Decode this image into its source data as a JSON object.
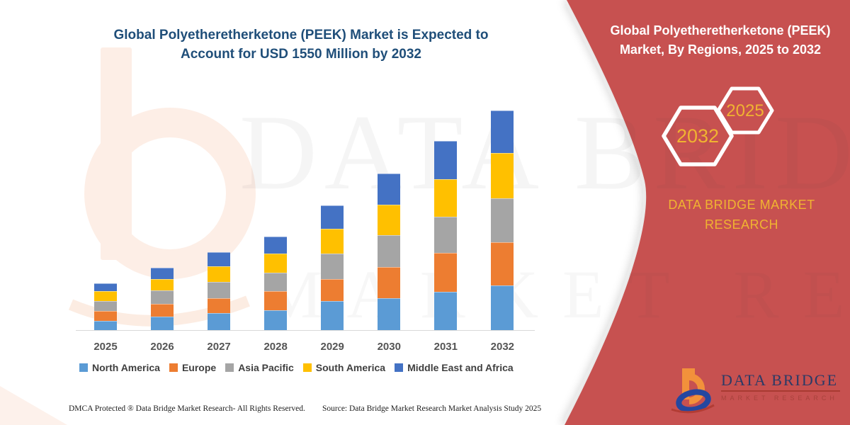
{
  "chart": {
    "title_line1": "Global Polyetheretherketone (PEEK) Market is Expected to",
    "title_line2": "Account for USD 1550 Million by 2032",
    "title_color": "#1f4e79"
  },
  "chart_data": {
    "type": "bar",
    "stacked": true,
    "title": "Global Polyetheretherketone (PEEK) Market is Expected to Account for USD 1550 Million by 2032",
    "unit": "USD Million",
    "xlabel": "",
    "ylabel": "",
    "ylim": [
      0,
      1620
    ],
    "grid": false,
    "legend_position": "bottom",
    "annotation": "USD 1550 Million by 2032",
    "categories": [
      "2025",
      "2026",
      "2027",
      "2028",
      "2029",
      "2030",
      "2031",
      "2032"
    ],
    "series": [
      {
        "name": "North America",
        "color": "#5b9bd5",
        "values": [
          63,
          96,
          121,
          141,
          207,
          224,
          270,
          315
        ]
      },
      {
        "name": "Europe",
        "color": "#ed7d31",
        "values": [
          70,
          91,
          103,
          133,
          154,
          220,
          273,
          307
        ]
      },
      {
        "name": "Asia Pacific",
        "color": "#a5a5a5",
        "values": [
          71,
          94,
          116,
          133,
          179,
          224,
          257,
          308
        ]
      },
      {
        "name": "South America",
        "color": "#ffc000",
        "values": [
          71,
          80,
          108,
          133,
          177,
          216,
          265,
          318
        ]
      },
      {
        "name": "Middle East and Africa",
        "color": "#4472c4",
        "values": [
          53,
          80,
          104,
          121,
          161,
          219,
          268,
          302
        ]
      }
    ],
    "totals": [
      328,
      441,
      552,
      661,
      878,
      1103,
      1333,
      1550
    ]
  },
  "panel": {
    "bg_color": "#c75150",
    "title_line1": "Global Polyetheretherketone (PEEK)",
    "title_line2": "Market, By Regions, 2025 to 2032",
    "accent_gold": "#f0b331",
    "hexagons": [
      {
        "label": "2032"
      },
      {
        "label": "2025"
      }
    ],
    "brand_line1": "DATA BRIDGE MARKET",
    "brand_line2": "RESEARCH"
  },
  "logo": {
    "name": "DATA BRIDGE",
    "sub": "MARKET RESEARCH"
  },
  "watermark": {
    "line1": "DATA BRIDGE",
    "line2": "MARKET RESEARCH"
  },
  "footer": {
    "dmca": "DMCA Protected ® Data Bridge Market Research-  All Rights Reserved.",
    "source": "Source: Data Bridge Market Research  Market Analysis Study 2025"
  }
}
